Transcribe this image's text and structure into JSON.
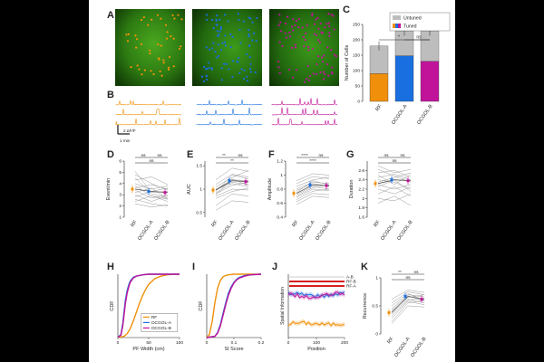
{
  "colors": {
    "rf": "#f0900a",
    "ocgol_a": "#1a6fe0",
    "ocgol_b": "#c0139a",
    "untuned": "#bdbdbd",
    "gray_line": "#9a9a9a",
    "red_bar": "#d61f1f"
  },
  "panel_letters": [
    "A",
    "B",
    "C",
    "D",
    "E",
    "F",
    "G",
    "H",
    "I",
    "J",
    "K"
  ],
  "groups": [
    "RF",
    "OCGOL-A",
    "OCGOL-B"
  ],
  "panel_b": {
    "scale_label": "2 ΔF/F",
    "time_label": "1 min"
  },
  "panel_c": {
    "type": "bar",
    "ylabel": "Number of Cells",
    "ylim": [
      0,
      250
    ],
    "yticks": [
      "0",
      "50",
      "100",
      "150",
      "200",
      "250"
    ],
    "categories": [
      "RF",
      "OCGOL-A",
      "OCGOL-B"
    ],
    "tuned": [
      90,
      148,
      130
    ],
    "total": [
      180,
      228,
      228
    ],
    "legend": [
      "Untuned",
      "Tuned"
    ],
    "sig": [
      {
        "from": 0,
        "to": 2,
        "label": "*"
      },
      {
        "from": 1,
        "to": 2,
        "label": "ns"
      }
    ]
  },
  "panel_d": {
    "ylabel": "Event/min",
    "ylim": [
      1,
      6
    ],
    "yticks": [
      "1",
      "2",
      "3",
      "4",
      "5",
      "6"
    ],
    "means": [
      3.5,
      3.3,
      3.2
    ],
    "sig": [
      {
        "from": 0,
        "to": 1,
        "label": "ns"
      },
      {
        "from": 1,
        "to": 2,
        "label": "ns"
      },
      {
        "from": 0,
        "to": 2,
        "label": "ns"
      }
    ],
    "lines": [
      [
        5.1,
        3.2,
        3.3
      ],
      [
        4.8,
        4.0,
        3.4
      ],
      [
        4.5,
        3.1,
        2.7
      ],
      [
        4.3,
        4.6,
        3.9
      ],
      [
        4.0,
        3.5,
        3.8
      ],
      [
        3.8,
        2.9,
        2.4
      ],
      [
        3.6,
        3.9,
        3.5
      ],
      [
        3.4,
        2.7,
        3.0
      ],
      [
        3.2,
        3.6,
        2.6
      ],
      [
        3.0,
        2.4,
        2.9
      ],
      [
        2.8,
        3.3,
        3.6
      ],
      [
        2.6,
        2.2,
        2.0
      ],
      [
        2.4,
        2.9,
        2.6
      ],
      [
        2.2,
        1.9,
        2.1
      ]
    ]
  },
  "panel_e": {
    "ylabel": "AUC",
    "ylim": [
      0.4,
      1.6
    ],
    "yticks": [
      "0.5",
      "1",
      "1.5"
    ],
    "means": [
      0.98,
      1.18,
      1.16
    ],
    "sig": [
      {
        "from": 0,
        "to": 1,
        "label": "**"
      },
      {
        "from": 1,
        "to": 2,
        "label": "ns"
      },
      {
        "from": 0,
        "to": 2,
        "label": "**"
      }
    ],
    "lines": [
      [
        1.2,
        1.45,
        1.38
      ],
      [
        1.1,
        1.32,
        1.26
      ],
      [
        1.05,
        1.25,
        1.4
      ],
      [
        1.0,
        1.2,
        1.18
      ],
      [
        0.98,
        1.15,
        1.1
      ],
      [
        0.95,
        1.3,
        1.22
      ],
      [
        0.92,
        1.12,
        1.05
      ],
      [
        0.9,
        1.08,
        1.15
      ],
      [
        0.88,
        1.22,
        1.08
      ],
      [
        0.85,
        1.0,
        0.98
      ],
      [
        0.8,
        0.95,
        1.02
      ],
      [
        0.65,
        0.9,
        0.85
      ],
      [
        0.55,
        0.75,
        0.72
      ]
    ]
  },
  "panel_f": {
    "ylabel": "Amplitude",
    "ylim": [
      0.4,
      1.2
    ],
    "yticks": [
      "0.4",
      "0.6",
      "0.8",
      "1",
      "1.2"
    ],
    "means": [
      0.74,
      0.86,
      0.85
    ],
    "sig": [
      {
        "from": 0,
        "to": 1,
        "label": "****"
      },
      {
        "from": 1,
        "to": 2,
        "label": "ns"
      },
      {
        "from": 0,
        "to": 2,
        "label": "****"
      }
    ],
    "lines": [
      [
        0.92,
        1.02,
        1.0
      ],
      [
        0.88,
        0.98,
        0.95
      ],
      [
        0.84,
        0.93,
        0.97
      ],
      [
        0.8,
        0.9,
        0.88
      ],
      [
        0.78,
        0.88,
        0.84
      ],
      [
        0.75,
        0.92,
        0.86
      ],
      [
        0.72,
        0.84,
        0.8
      ],
      [
        0.7,
        0.82,
        0.86
      ],
      [
        0.68,
        0.8,
        0.78
      ],
      [
        0.65,
        0.77,
        0.8
      ],
      [
        0.62,
        0.74,
        0.72
      ],
      [
        0.58,
        0.7,
        0.68
      ]
    ]
  },
  "panel_g": {
    "ylabel": "Duration",
    "ylim": [
      1.6,
      2.8
    ],
    "yticks": [
      "1.6",
      "1.8",
      "2",
      "2.2",
      "2.4",
      "2.6"
    ],
    "means": [
      2.32,
      2.4,
      2.38
    ],
    "sig": [
      {
        "from": 0,
        "to": 1,
        "label": "ns"
      },
      {
        "from": 1,
        "to": 2,
        "label": "ns"
      },
      {
        "from": 0,
        "to": 2,
        "label": "ns"
      }
    ],
    "lines": [
      [
        2.7,
        2.55,
        2.62
      ],
      [
        2.62,
        2.48,
        2.35
      ],
      [
        2.55,
        2.6,
        2.45
      ],
      [
        2.5,
        2.3,
        2.52
      ],
      [
        2.45,
        2.52,
        2.4
      ],
      [
        2.4,
        2.35,
        2.2
      ],
      [
        2.35,
        2.45,
        2.55
      ],
      [
        2.3,
        2.2,
        2.3
      ],
      [
        2.25,
        2.4,
        2.15
      ],
      [
        2.2,
        2.1,
        2.25
      ],
      [
        2.1,
        2.25,
        2.05
      ],
      [
        2.0,
        1.95,
        2.1
      ],
      [
        1.9,
        2.05,
        1.85
      ]
    ]
  },
  "panel_h": {
    "type": "line",
    "ylabel": "CDF",
    "xlabel": "PF Width (cm)",
    "xlim": [
      0,
      100
    ],
    "ylim": [
      0,
      1
    ],
    "xticks": [
      "0",
      "50",
      "100"
    ],
    "legend": [
      "RF",
      "OCGOL-A",
      "OCGOL-B"
    ],
    "series": [
      {
        "x": [
          0,
          10,
          15,
          20,
          25,
          30,
          35,
          40,
          45,
          50,
          60,
          70,
          80,
          90,
          100
        ],
        "y": [
          0,
          0.02,
          0.06,
          0.14,
          0.26,
          0.4,
          0.54,
          0.66,
          0.76,
          0.84,
          0.93,
          0.97,
          0.99,
          1,
          1
        ]
      },
      {
        "x": [
          0,
          5,
          8,
          10,
          12,
          15,
          18,
          20,
          25,
          30,
          40,
          50,
          60,
          100
        ],
        "y": [
          0,
          0.05,
          0.22,
          0.4,
          0.58,
          0.74,
          0.84,
          0.89,
          0.95,
          0.97,
          0.99,
          1,
          1,
          1
        ]
      },
      {
        "x": [
          0,
          5,
          8,
          10,
          12,
          15,
          18,
          20,
          25,
          30,
          40,
          50,
          60,
          100
        ],
        "y": [
          0,
          0.04,
          0.18,
          0.35,
          0.53,
          0.7,
          0.81,
          0.87,
          0.94,
          0.97,
          0.99,
          1,
          1,
          1
        ]
      }
    ]
  },
  "panel_i": {
    "type": "line",
    "ylabel": "CDF",
    "xlabel": "SI Score",
    "xlim": [
      0,
      0.2
    ],
    "ylim": [
      0,
      1
    ],
    "xticks": [
      "0",
      "0.1",
      "0.2"
    ],
    "series": [
      {
        "x": [
          0,
          0.01,
          0.02,
          0.03,
          0.04,
          0.05,
          0.06,
          0.07,
          0.08,
          0.1,
          0.12,
          0.15,
          0.2
        ],
        "y": [
          0,
          0.05,
          0.25,
          0.55,
          0.78,
          0.9,
          0.96,
          0.98,
          0.99,
          1,
          1,
          1,
          1
        ]
      },
      {
        "x": [
          0,
          0.03,
          0.04,
          0.05,
          0.06,
          0.07,
          0.08,
          0.09,
          0.1,
          0.11,
          0.12,
          0.14,
          0.16,
          0.2
        ],
        "y": [
          0,
          0.02,
          0.08,
          0.2,
          0.38,
          0.55,
          0.7,
          0.8,
          0.87,
          0.92,
          0.95,
          0.98,
          0.99,
          1
        ]
      },
      {
        "x": [
          0,
          0.03,
          0.04,
          0.05,
          0.06,
          0.07,
          0.08,
          0.09,
          0.1,
          0.11,
          0.12,
          0.14,
          0.16,
          0.2
        ],
        "y": [
          0,
          0.02,
          0.07,
          0.18,
          0.35,
          0.52,
          0.67,
          0.78,
          0.86,
          0.91,
          0.94,
          0.97,
          0.99,
          1
        ]
      }
    ]
  },
  "panel_j": {
    "type": "line",
    "ylabel": "Spatial Information",
    "xlabel": "Position",
    "xlim": [
      0,
      200
    ],
    "xticks": [
      "0",
      "100",
      "200"
    ],
    "sig_labels": [
      "A-B",
      "RF-B",
      "RF-A"
    ],
    "series": [
      {
        "name": "RF",
        "level": 0.22,
        "amp": 0.012
      },
      {
        "name": "OCGOL-A",
        "level": 0.68,
        "amp": 0.025
      },
      {
        "name": "OCGOL-B",
        "level": 0.66,
        "amp": 0.03
      }
    ]
  },
  "panel_k": {
    "ylabel": "Recurrence",
    "ylim": [
      0,
      1
    ],
    "yticks": [
      "0",
      "0.5",
      "1"
    ],
    "means": [
      0.38,
      0.67,
      0.62
    ],
    "sig": [
      {
        "from": 0,
        "to": 1,
        "label": "**"
      },
      {
        "from": 1,
        "to": 2,
        "label": "ns"
      },
      {
        "from": 0,
        "to": 2,
        "label": "ns"
      }
    ],
    "lines": [
      [
        0.62,
        0.78,
        0.74
      ],
      [
        0.55,
        0.75,
        0.7
      ],
      [
        0.5,
        0.72,
        0.6
      ],
      [
        0.45,
        0.7,
        0.66
      ],
      [
        0.42,
        0.68,
        0.58
      ],
      [
        0.4,
        0.65,
        0.7
      ],
      [
        0.36,
        0.62,
        0.55
      ],
      [
        0.32,
        0.6,
        0.64
      ],
      [
        0.28,
        0.58,
        0.52
      ],
      [
        0.22,
        0.55,
        0.6
      ],
      [
        0.18,
        0.5,
        0.48
      ]
    ]
  }
}
